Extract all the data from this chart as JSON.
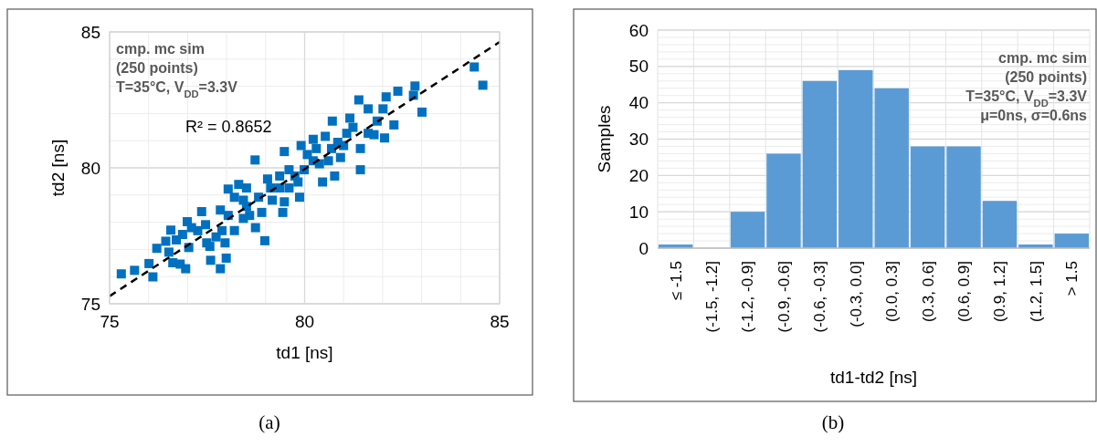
{
  "chart_data": [
    {
      "type": "scatter",
      "xlabel": "td1 [ns]",
      "ylabel": "td2 [ns]",
      "xlim": [
        75,
        85
      ],
      "ylim": [
        75,
        85
      ],
      "xticks": [
        75,
        80,
        85
      ],
      "yticks": [
        75,
        80,
        85
      ],
      "grid": true,
      "annotations": [
        "cmp. mc sim",
        "(250 points)",
        "T=35°C, V$_{DD}$=3.3V",
        "R² = 0.8652",
        "(a)"
      ],
      "series": [
        {
          "type": "scatter",
          "color": "#0070c0",
          "marker": "square",
          "x": [
            75.3,
            75.64,
            76.01,
            76.11,
            76.21,
            76.57,
            76.44,
            76.62,
            76.81,
            76.95,
            76.87,
            77.03,
            76.99,
            77.36,
            77.26,
            77.46,
            77.57,
            77.59,
            77.84,
            77.99,
            77.73,
            78.04,
            77.84,
            77.96,
            78.2,
            78.31,
            78.43,
            78.51,
            78.59,
            78.74,
            78.98,
            78.9,
            79.05,
            79.17,
            79.44,
            79.48,
            79.36,
            79.48,
            79.6,
            79.87,
            79.83,
            79.99,
            80.07,
            80.22,
            80.38,
            80.53,
            80.69,
            80.77,
            80.92,
            81.0,
            81.08,
            80.71,
            81.16,
            81.39,
            81.63,
            81.43,
            81.43,
            81.63,
            81.78,
            82.01,
            82.09,
            82.05,
            82.29,
            82.39,
            82.83,
            82.79,
            83.01,
            84.35,
            84.57,
            78.73,
            78.2,
            78.51,
            79.13,
            79.6,
            80.22,
            80.46,
            78.43,
            78.04,
            76.71,
            76.52,
            77.1,
            79.36,
            80.3,
            81.24,
            81.86,
            80.85,
            79.75,
            78.82,
            77.88,
            77.49,
            79.91,
            80.61
          ],
          "values": [
            76.1,
            76.23,
            76.48,
            75.99,
            77.04,
            77.71,
            77.3,
            76.51,
            76.46,
            76.29,
            77.55,
            77.07,
            78.02,
            78.39,
            77.69,
            77.91,
            77.11,
            76.6,
            76.29,
            76.68,
            77.46,
            79.22,
            78.45,
            77.24,
            77.69,
            79.39,
            78.81,
            79.26,
            78.25,
            77.8,
            77.32,
            78.36,
            79.59,
            78.81,
            78.36,
            78.75,
            79.7,
            80.6,
            79.26,
            78.92,
            79.48,
            79.93,
            80.49,
            81.05,
            80.15,
            81.16,
            80.71,
            79.7,
            80.38,
            80.82,
            81.27,
            81.72,
            81.83,
            82.5,
            82.17,
            80.71,
            79.93,
            81.27,
            81.22,
            82.17,
            82.61,
            81.1,
            81.58,
            82.82,
            83.01,
            82.67,
            82.05,
            83.71,
            83.04,
            80.29,
            78.92,
            78.58,
            79.26,
            79.93,
            80.26,
            79.48,
            78.14,
            78.25,
            77.35,
            76.9,
            77.8,
            79.26,
            80.71,
            81.49,
            81.72,
            80.94,
            79.7,
            78.92,
            77.69,
            77.24,
            80.82,
            80.26
          ]
        },
        {
          "type": "line",
          "color": "#000000",
          "line_style": "dashed",
          "marker": "none",
          "x": [
            75,
            85
          ],
          "values": [
            75.28,
            84.63
          ]
        }
      ]
    },
    {
      "type": "bar",
      "xlabel": "td1-td2 [ns]",
      "ylabel": "Samples",
      "ylim": [
        0,
        60
      ],
      "yticks": [
        0,
        10,
        20,
        30,
        40,
        50,
        60
      ],
      "grid": true,
      "categories": [
        "≤ -1.5",
        "(-1.5, -1.2]",
        "(-1.2, -0.9]",
        "(-0.9, -0.6]",
        "(-0.6, -0.3]",
        "(-0.3, 0.0]",
        "(0.0, 0.3]",
        "(0.3, 0.6]",
        "(0.6, 0.9]",
        "(0.9, 1.2]",
        "(1.2, 1.5]",
        "> 1.5"
      ],
      "annotations": [
        "cmp. mc sim",
        "(250 points)",
        "T=35°C, V$_{DD}$=3.3V",
        "μ=0ns, σ=0.6ns",
        "(b)"
      ],
      "series": [
        {
          "color": "#5b9bd5",
          "values": [
            1,
            0,
            10,
            26,
            46,
            49,
            44,
            28,
            28,
            13,
            1,
            4
          ]
        }
      ]
    }
  ]
}
